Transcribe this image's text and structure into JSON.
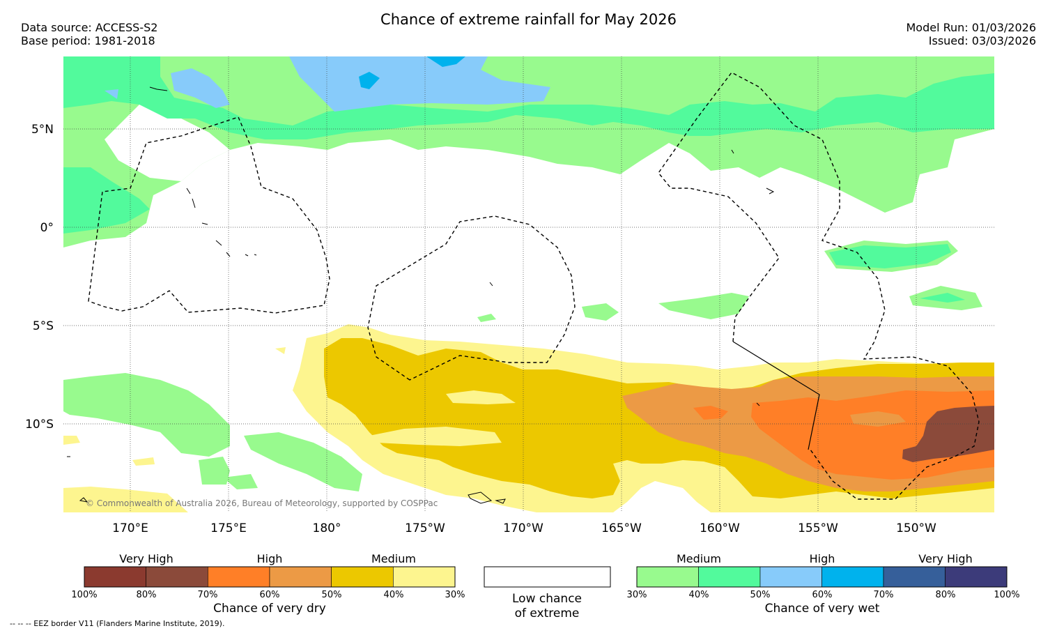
{
  "header": {
    "title": "Chance of extreme rainfall for May 2026",
    "data_source": "Data source: ACCESS-S2",
    "base_period": "Base period: 1981-2018",
    "model_run": "Model Run: 01/03/2026",
    "issued": "Issued: 03/03/2026"
  },
  "map": {
    "lat_labels": [
      "5°N",
      "0°",
      "5°S",
      "10°S"
    ],
    "lon_labels": [
      "170°E",
      "175°E",
      "180°",
      "175°W",
      "170°W",
      "165°W",
      "160°W",
      "155°W",
      "150°W"
    ],
    "copyright": "© Commonwealth of Australia 2026, Bureau of Meteorology, supported by COSPPac"
  },
  "legend_dry": {
    "category_labels": [
      "Very High",
      "High",
      "Medium"
    ],
    "ticks": [
      "100%",
      "80%",
      "70%",
      "60%",
      "50%",
      "40%",
      "30%"
    ],
    "colors": [
      "#8B3A2F",
      "#8B4A3A",
      "#FF7F27",
      "#EC9A45",
      "#ECC800",
      "#FDF58F"
    ],
    "caption": "Chance of very dry"
  },
  "legend_low": {
    "line1": "Low chance",
    "line2": "of extreme"
  },
  "legend_wet": {
    "category_labels": [
      "Medium",
      "High",
      "Very High"
    ],
    "ticks": [
      "30%",
      "40%",
      "50%",
      "60%",
      "70%",
      "80%",
      "100%"
    ],
    "colors": [
      "#98FA8E",
      "#52FA9C",
      "#87CBFA",
      "#00B2ED",
      "#365F9A",
      "#3C3B7A"
    ],
    "caption": "Chance of very wet"
  },
  "footer": {
    "eez_note": "--  --  -- EEZ border V11 (Flanders Marine Institute, 2019)."
  }
}
